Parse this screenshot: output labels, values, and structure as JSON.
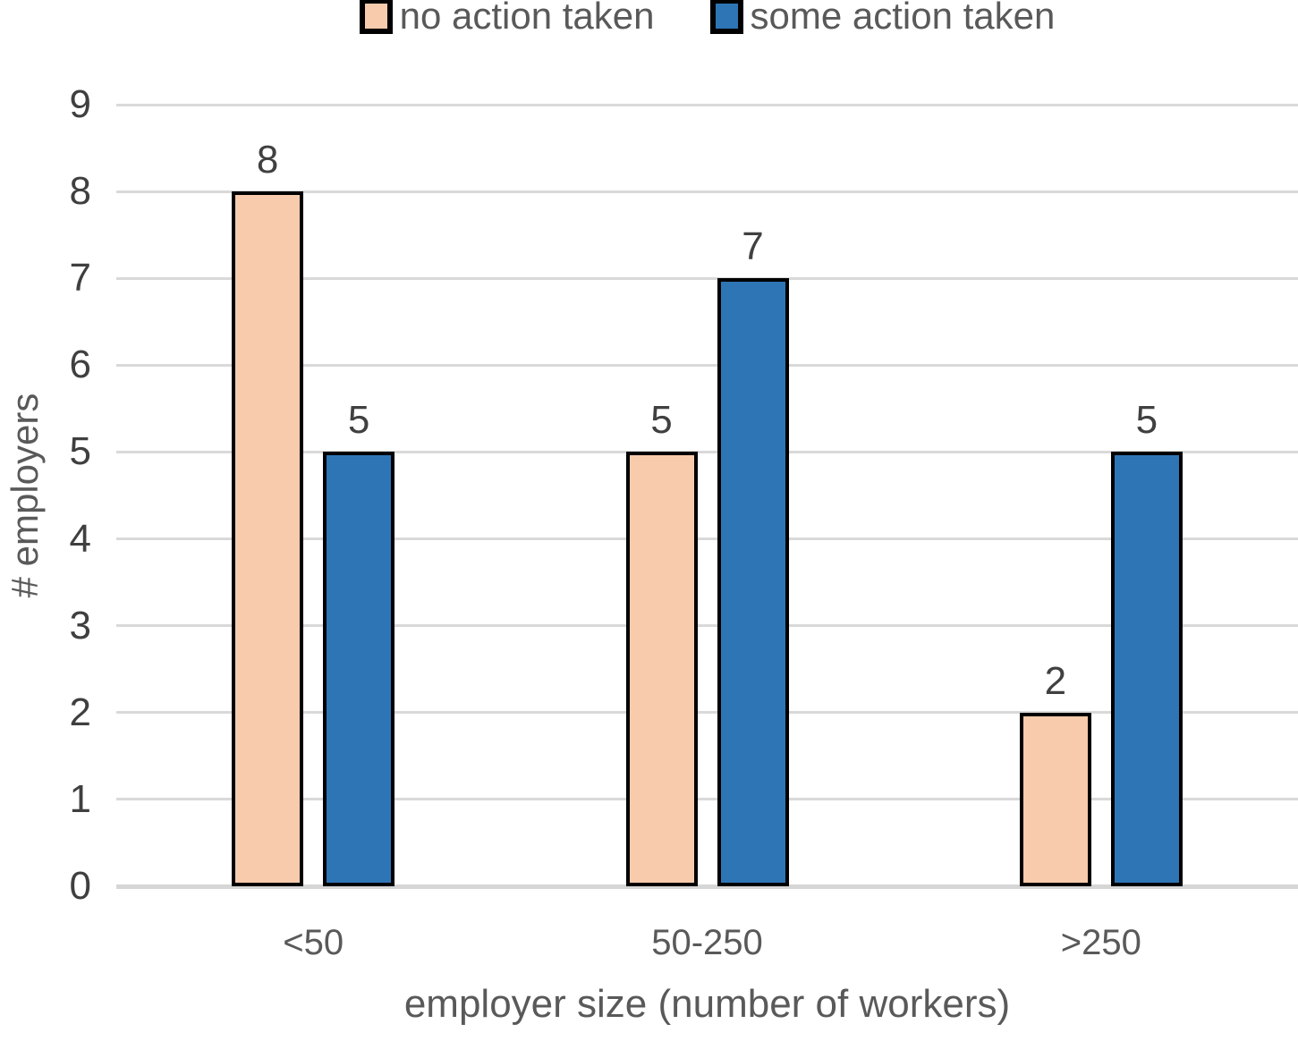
{
  "chart_data": {
    "type": "bar",
    "title": "",
    "categories": [
      "<50",
      "50-250",
      ">250"
    ],
    "series": [
      {
        "name": "no action taken",
        "color": "#F8CBAD",
        "values": [
          8,
          5,
          2
        ]
      },
      {
        "name": "some action taken",
        "color": "#2E75B6",
        "values": [
          5,
          7,
          5
        ]
      }
    ],
    "xlabel": "employer size (number of workers)",
    "ylabel": "# employers",
    "ylim": [
      0,
      9
    ],
    "yticks": [
      0,
      1,
      2,
      3,
      4,
      5,
      6,
      7,
      8,
      9
    ],
    "grid": true,
    "legend_position": "top",
    "data_labels": true,
    "bar_border_color": "#000000",
    "gridline_color": "#D9D9D9"
  }
}
